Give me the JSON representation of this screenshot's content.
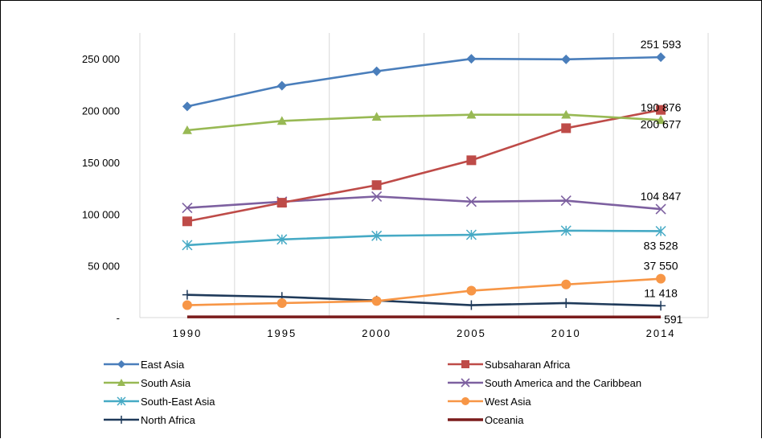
{
  "chart_data": {
    "type": "line",
    "x": [
      "1990",
      "1995",
      "2000",
      "2005",
      "2010",
      "2014"
    ],
    "ylim": [
      0,
      275000
    ],
    "yticks": [
      {
        "value": 0,
        "label": "-"
      },
      {
        "value": 50000,
        "label": "50 000"
      },
      {
        "value": 100000,
        "label": "100 000"
      },
      {
        "value": 150000,
        "label": "150 000"
      },
      {
        "value": 200000,
        "label": "200 000"
      },
      {
        "value": 250000,
        "label": "250 000"
      }
    ],
    "grid": {
      "vertical": true,
      "horizontal": false
    },
    "legend_position": "bottom",
    "series": [
      {
        "name": "East Asia",
        "color": "#4a7ebb",
        "marker": "diamond",
        "values": [
          204000,
          224000,
          238000,
          250000,
          249500,
          251593
        ]
      },
      {
        "name": "Subsaharan Africa",
        "color": "#be4b48",
        "marker": "square",
        "values": [
          93000,
          111000,
          128000,
          152000,
          183000,
          200677
        ]
      },
      {
        "name": "South Asia",
        "color": "#98b954",
        "marker": "triangle",
        "values": [
          181000,
          190000,
          194000,
          196000,
          196000,
          190876
        ]
      },
      {
        "name": "South America and the Caribbean",
        "color": "#7d60a0",
        "marker": "x",
        "values": [
          106000,
          112000,
          117000,
          112000,
          113000,
          104847
        ]
      },
      {
        "name": "South-East Asia",
        "color": "#46aac5",
        "marker": "asterisk",
        "values": [
          70000,
          75500,
          79000,
          80000,
          84000,
          83528
        ]
      },
      {
        "name": "West Asia",
        "color": "#f79646",
        "marker": "circle",
        "values": [
          12000,
          14000,
          16000,
          26000,
          32000,
          37550
        ]
      },
      {
        "name": "North Africa",
        "color": "#1f3a5a",
        "marker": "plus",
        "values": [
          22000,
          20000,
          16500,
          12000,
          14000,
          11418
        ]
      },
      {
        "name": "Oceania",
        "color": "#7b1c1c",
        "marker": "none",
        "values": [
          700,
          700,
          650,
          620,
          600,
          591
        ]
      }
    ],
    "data_labels": [
      {
        "series": "East Asia",
        "x": "2014",
        "text": "251 593",
        "anchor": "above"
      },
      {
        "series": "South Asia",
        "x": "2014",
        "text": "190 876",
        "anchor": "above"
      },
      {
        "series": "Subsaharan Africa",
        "x": "2014",
        "text": "200 677",
        "anchor": "below"
      },
      {
        "series": "South America and the Caribbean",
        "x": "2014",
        "text": "104 847",
        "anchor": "above"
      },
      {
        "series": "South-East Asia",
        "x": "2014",
        "text": "83 528",
        "anchor": "below"
      },
      {
        "series": "West Asia",
        "x": "2014",
        "text": "37 550",
        "anchor": "above"
      },
      {
        "series": "North Africa",
        "x": "2014",
        "text": "11 418",
        "anchor": "above"
      },
      {
        "series": "Oceania",
        "x": "2014",
        "text": "591",
        "anchor": "right"
      }
    ]
  }
}
